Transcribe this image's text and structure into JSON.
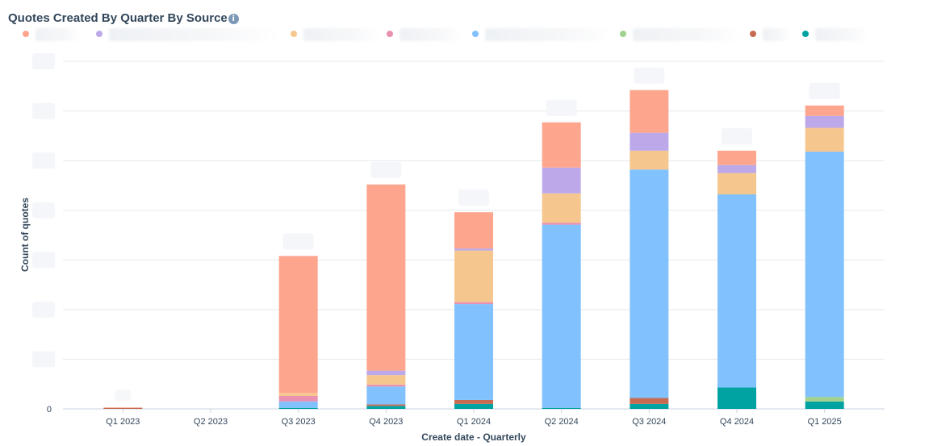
{
  "header": {
    "title": "Quotes Created By Quarter By Source",
    "info_icon": "info-icon"
  },
  "colors": {
    "series1": "#fea58e",
    "series2": "#bda9ea",
    "series3": "#f5c78e",
    "series4": "#ea90b1",
    "series5": "#81c1fd",
    "series6": "#a2d28f",
    "series7": "#c66b51",
    "series8": "#00a2a2"
  },
  "chart_data": {
    "type": "bar",
    "stacked": true,
    "title": "Quotes Created By Quarter By Source",
    "xlabel": "Create date - Quarterly",
    "ylabel": "Count of quotes",
    "categories": [
      "Q1 2023",
      "Q2 2023",
      "Q3 2023",
      "Q4 2023",
      "Q1 2024",
      "Q2 2024",
      "Q3 2024",
      "Q4 2024",
      "Q1 2025"
    ],
    "y_tick_labels": [
      "0"
    ],
    "ylim": [
      0,
      70
    ],
    "grid": true,
    "legend_position": "top",
    "series": [
      {
        "color": "#00a2a2",
        "values": [
          0,
          0,
          0.2,
          0.6,
          1.0,
          0.2,
          1.0,
          4.3,
          1.5
        ]
      },
      {
        "color": "#c66b51",
        "values": [
          0.2,
          0,
          0,
          0.3,
          0.8,
          0,
          1.2,
          0,
          0
        ]
      },
      {
        "color": "#a2d28f",
        "values": [
          0,
          0,
          0,
          0,
          0,
          0,
          0,
          0,
          0.9
        ]
      },
      {
        "color": "#81c1fd",
        "values": [
          0,
          0,
          1.3,
          3.6,
          19.3,
          36.9,
          46.0,
          38.9,
          49.4
        ]
      },
      {
        "color": "#ea90b1",
        "values": [
          0,
          0,
          1.1,
          0.4,
          0.4,
          0.4,
          0,
          0,
          0
        ]
      },
      {
        "color": "#f5c78e",
        "values": [
          0,
          0,
          0.6,
          1.9,
          10.4,
          5.9,
          3.8,
          4.3,
          4.8
        ]
      },
      {
        "color": "#bda9ea",
        "values": [
          0,
          0,
          0,
          0.9,
          0.4,
          5.2,
          3.6,
          1.6,
          2.4
        ]
      },
      {
        "color": "#fea58e",
        "values": [
          0.1,
          0,
          27.6,
          37.5,
          7.3,
          9.1,
          8.6,
          2.9,
          2.1
        ]
      }
    ]
  }
}
